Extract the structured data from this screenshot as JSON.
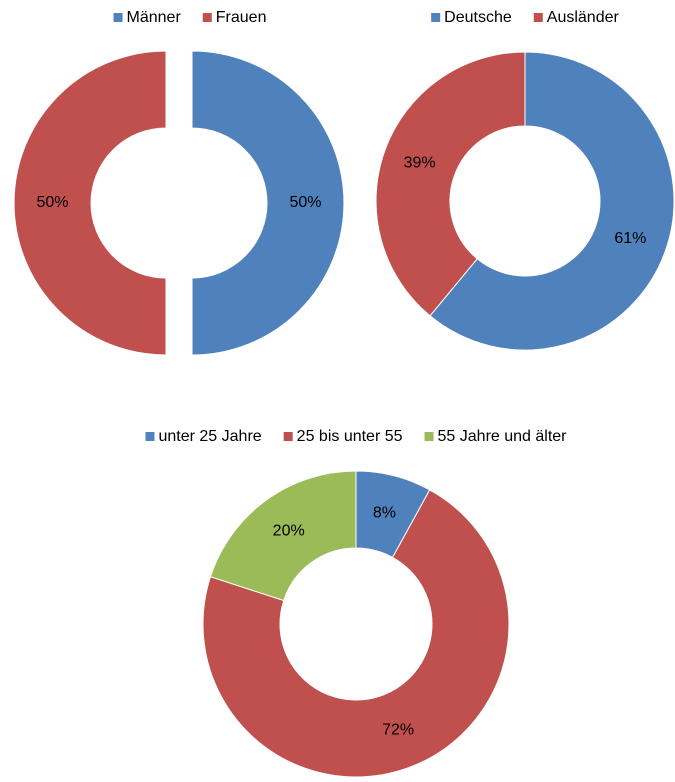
{
  "chart_data": [
    {
      "type": "donut",
      "categories": [
        "Männer",
        "Frauen"
      ],
      "values": [
        50,
        50
      ],
      "value_labels": [
        "50%",
        "50%"
      ],
      "colors": [
        "#4f81bd",
        "#c0504d"
      ],
      "exploded": true,
      "legend": "top"
    },
    {
      "type": "donut",
      "categories": [
        "Deutsche",
        "Ausländer"
      ],
      "values": [
        61,
        39
      ],
      "value_labels": [
        "61%",
        "39%"
      ],
      "colors": [
        "#4f81bd",
        "#c0504d"
      ],
      "exploded": false,
      "legend": "top"
    },
    {
      "type": "donut",
      "categories": [
        "unter 25 Jahre",
        "25 bis unter 55",
        "55 Jahre und älter"
      ],
      "values": [
        8,
        72,
        20
      ],
      "value_labels": [
        "8%",
        "72%",
        "20%"
      ],
      "colors": [
        "#4f81bd",
        "#c0504d",
        "#9bbb59"
      ],
      "exploded": false,
      "legend": "top"
    }
  ]
}
